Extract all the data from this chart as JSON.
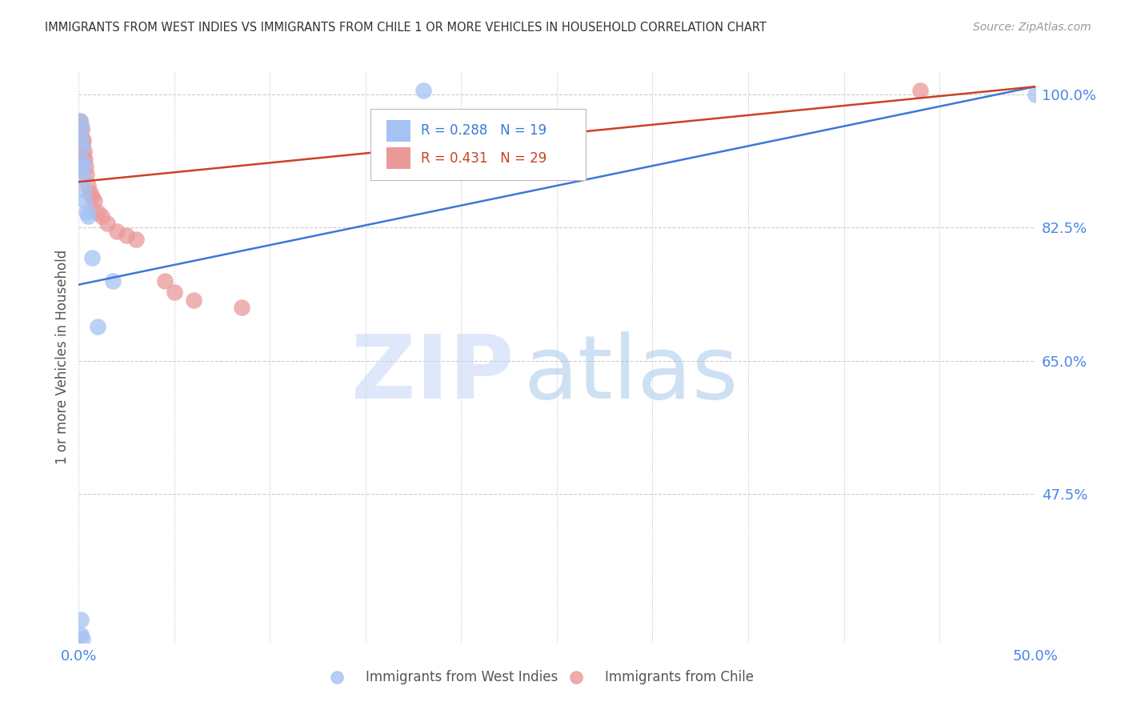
{
  "title": "IMMIGRANTS FROM WEST INDIES VS IMMIGRANTS FROM CHILE 1 OR MORE VEHICLES IN HOUSEHOLD CORRELATION CHART",
  "source": "Source: ZipAtlas.com",
  "ylabel": "1 or more Vehicles in Household",
  "blue_label": "Immigrants from West Indies",
  "pink_label": "Immigrants from Chile",
  "blue_r": "R = 0.288",
  "blue_n": "N = 19",
  "pink_r": "R = 0.431",
  "pink_n": "N = 29",
  "blue_color": "#a4c2f4",
  "pink_color": "#ea9999",
  "blue_line_color": "#3c78d8",
  "pink_line_color": "#cc4125",
  "xlim": [
    0.0,
    50.0
  ],
  "ylim": [
    28.0,
    103.0
  ],
  "yticks": [
    47.5,
    65.0,
    82.5,
    100.0
  ],
  "ytick_labels": [
    "47.5%",
    "65.0%",
    "82.5%",
    "100.0%"
  ],
  "blue_x": [
    0.05,
    0.1,
    0.15,
    0.18,
    0.2,
    0.22,
    0.25,
    0.28,
    0.3,
    0.4,
    0.5,
    0.7,
    1.0,
    1.8,
    0.12,
    0.12,
    0.2,
    18.0,
    50.0
  ],
  "blue_y": [
    96.5,
    94.0,
    95.5,
    93.0,
    91.0,
    90.5,
    89.0,
    87.5,
    86.0,
    84.5,
    84.0,
    78.5,
    69.5,
    75.5,
    31.0,
    29.0,
    28.5,
    100.5,
    100.0
  ],
  "pink_x": [
    0.05,
    0.08,
    0.1,
    0.12,
    0.14,
    0.16,
    0.18,
    0.2,
    0.22,
    0.25,
    0.28,
    0.3,
    0.35,
    0.4,
    0.5,
    0.6,
    0.7,
    0.8,
    1.0,
    1.2,
    1.5,
    2.0,
    2.5,
    3.0,
    4.5,
    5.0,
    6.0,
    8.5,
    44.0
  ],
  "pink_y": [
    96.5,
    95.0,
    94.5,
    96.0,
    95.5,
    94.0,
    93.5,
    93.0,
    92.0,
    94.0,
    92.5,
    91.5,
    90.5,
    89.5,
    88.0,
    87.0,
    86.5,
    86.0,
    84.5,
    84.0,
    83.0,
    82.0,
    81.5,
    81.0,
    75.5,
    74.0,
    73.0,
    72.0,
    100.5
  ],
  "blue_line_x0": 0.0,
  "blue_line_y0": 75.0,
  "blue_line_x1": 50.0,
  "blue_line_y1": 101.0,
  "pink_line_x0": 0.0,
  "pink_line_y0": 88.5,
  "pink_line_x1": 50.0,
  "pink_line_y1": 101.0,
  "watermark_zip_color": "#c9daf8",
  "watermark_atlas_color": "#9fc5e8",
  "title_color": "#333333",
  "source_color": "#999999",
  "tick_color": "#4a86e8",
  "ylabel_color": "#555555",
  "legend_color_text": "#555555",
  "grid_color": "#cccccc"
}
